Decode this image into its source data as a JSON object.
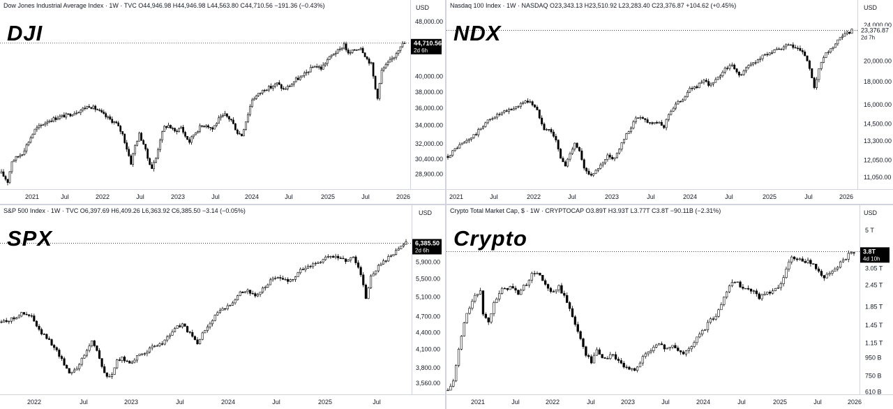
{
  "chart_data": [
    {
      "type": "candlestick",
      "name_label": "DJI",
      "header": "Dow Jones Industrial Average Index · 1W · TVC  O44,946.98 H44,946.98 L44,563.80 C44,710.56 −191.36 (−0.43%)",
      "currency": "USD",
      "scale": "log",
      "x_ticks": [
        "2021",
        "Jul",
        "2022",
        "Jul",
        "2023",
        "Jul",
        "2024",
        "Jul",
        "2025",
        "Jul",
        "2026"
      ],
      "y_ticks": [
        "48,000.00",
        "40,000.00",
        "38,000.00",
        "36,000.00",
        "34,000.00",
        "32,000.00",
        "30,400.00",
        "28,900.00"
      ],
      "ylim": [
        27500,
        49500
      ],
      "last_value": "44,710.56",
      "countdown": "2d 6h",
      "anchors": [
        [
          0,
          29000
        ],
        [
          3,
          28200
        ],
        [
          5,
          30200
        ],
        [
          10,
          31000
        ],
        [
          16,
          33500
        ],
        [
          22,
          34500
        ],
        [
          28,
          35000
        ],
        [
          32,
          35200
        ],
        [
          38,
          35800
        ],
        [
          42,
          36300
        ],
        [
          46,
          35800
        ],
        [
          50,
          35000
        ],
        [
          55,
          34200
        ],
        [
          58,
          33000
        ],
        [
          60,
          31500
        ],
        [
          62,
          30000
        ],
        [
          64,
          31800
        ],
        [
          66,
          33000
        ],
        [
          68,
          32000
        ],
        [
          70,
          30500
        ],
        [
          72,
          29500
        ],
        [
          74,
          30500
        ],
        [
          76,
          32500
        ],
        [
          78,
          33800
        ],
        [
          80,
          34000
        ],
        [
          83,
          33300
        ],
        [
          86,
          33800
        ],
        [
          88,
          32800
        ],
        [
          90,
          32200
        ],
        [
          92,
          33000
        ],
        [
          95,
          33800
        ],
        [
          98,
          34100
        ],
        [
          101,
          33600
        ],
        [
          104,
          34700
        ],
        [
          107,
          35200
        ],
        [
          110,
          34600
        ],
        [
          113,
          33200
        ],
        [
          115,
          32900
        ],
        [
          117,
          34500
        ],
        [
          120,
          37100
        ],
        [
          123,
          37700
        ],
        [
          126,
          38400
        ],
        [
          129,
          38600
        ],
        [
          132,
          39100
        ],
        [
          135,
          38300
        ],
        [
          138,
          38800
        ],
        [
          141,
          39600
        ],
        [
          144,
          40000
        ],
        [
          147,
          40800
        ],
        [
          150,
          41500
        ],
        [
          153,
          41100
        ],
        [
          156,
          42300
        ],
        [
          159,
          43200
        ],
        [
          162,
          43700
        ],
        [
          164,
          44600
        ],
        [
          166,
          43100
        ],
        [
          169,
          43700
        ],
        [
          172,
          44100
        ],
        [
          175,
          42400
        ],
        [
          177,
          41700
        ],
        [
          179,
          38400
        ],
        [
          180,
          37400
        ],
        [
          182,
          40800
        ],
        [
          185,
          41800
        ],
        [
          188,
          42800
        ],
        [
          191,
          44400
        ],
        [
          193,
          44710
        ]
      ]
    },
    {
      "type": "candlestick",
      "name_label": "NDX",
      "header": "Nasdaq 100 Index · 1W · NASDAQ  O23,343.13 H23,510.92 L23,283.40 C23,376.87 +104.62 (+0.45%)",
      "currency": "USD",
      "scale": "log",
      "x_ticks": [
        "2021",
        "Jul",
        "2022",
        "Jul",
        "2023",
        "Jul",
        "2024",
        "Jul",
        "2025",
        "Jul",
        "2026"
      ],
      "y_ticks": [
        "24,000.00",
        "20,000.00",
        "18,000.00",
        "16,000.00",
        "14,500.00",
        "13,300.00",
        "12,050.00",
        "11,050.00"
      ],
      "ylim": [
        10400,
        25600
      ],
      "last_value": "23,376.87",
      "countdown": "2d 7h",
      "anchors": [
        [
          0,
          12300
        ],
        [
          4,
          12900
        ],
        [
          8,
          13300
        ],
        [
          12,
          13800
        ],
        [
          16,
          14600
        ],
        [
          20,
          15100
        ],
        [
          24,
          15400
        ],
        [
          28,
          15700
        ],
        [
          32,
          16200
        ],
        [
          35,
          16300
        ],
        [
          38,
          15500
        ],
        [
          41,
          14200
        ],
        [
          44,
          14000
        ],
        [
          46,
          13300
        ],
        [
          48,
          12200
        ],
        [
          50,
          11700
        ],
        [
          52,
          12500
        ],
        [
          54,
          13200
        ],
        [
          56,
          12600
        ],
        [
          58,
          11500
        ],
        [
          60,
          11300
        ],
        [
          62,
          11200
        ],
        [
          64,
          11600
        ],
        [
          66,
          11800
        ],
        [
          68,
          12300
        ],
        [
          70,
          12100
        ],
        [
          72,
          12500
        ],
        [
          74,
          13100
        ],
        [
          76,
          13700
        ],
        [
          78,
          14300
        ],
        [
          80,
          14900
        ],
        [
          82,
          15100
        ],
        [
          84,
          14800
        ],
        [
          86,
          14600
        ],
        [
          88,
          14700
        ],
        [
          90,
          14500
        ],
        [
          92,
          14300
        ],
        [
          94,
          15300
        ],
        [
          97,
          16000
        ],
        [
          100,
          16500
        ],
        [
          103,
          17300
        ],
        [
          106,
          17600
        ],
        [
          109,
          18000
        ],
        [
          112,
          17700
        ],
        [
          115,
          18300
        ],
        [
          118,
          19300
        ],
        [
          121,
          19500
        ],
        [
          123,
          18900
        ],
        [
          125,
          18600
        ],
        [
          127,
          19300
        ],
        [
          130,
          19800
        ],
        [
          133,
          20300
        ],
        [
          136,
          20800
        ],
        [
          139,
          21000
        ],
        [
          142,
          21300
        ],
        [
          145,
          21700
        ],
        [
          148,
          21300
        ],
        [
          150,
          21100
        ],
        [
          153,
          20100
        ],
        [
          155,
          18200
        ],
        [
          156,
          17300
        ],
        [
          158,
          19200
        ],
        [
          161,
          20700
        ],
        [
          164,
          21500
        ],
        [
          167,
          22400
        ],
        [
          170,
          23000
        ],
        [
          172,
          23376
        ]
      ]
    },
    {
      "type": "candlestick",
      "name_label": "SPX",
      "header": "S&P 500 Index · 1W · TVC  O6,397.69 H6,409.26 L6,363.92 C6,385.50 −3.14 (−0.05%)",
      "currency": "USD",
      "scale": "log",
      "x_ticks": [
        "2022",
        "Jul",
        "2023",
        "Jul",
        "2024",
        "Jul",
        "2025",
        "Jul"
      ],
      "y_ticks": [
        "5,900.00",
        "5,500.00",
        "5,100.00",
        "4,700.00",
        "4,400.00",
        "4,100.00",
        "3,800.00",
        "3,560.00"
      ],
      "ylim": [
        3400,
        7100
      ],
      "last_value": "6,385.50",
      "countdown": "2d 6h",
      "anchors": [
        [
          0,
          4600
        ],
        [
          4,
          4650
        ],
        [
          8,
          4760
        ],
        [
          12,
          4700
        ],
        [
          15,
          4430
        ],
        [
          18,
          4300
        ],
        [
          21,
          4150
        ],
        [
          24,
          3930
        ],
        [
          27,
          3720
        ],
        [
          30,
          3800
        ],
        [
          33,
          4000
        ],
        [
          36,
          4250
        ],
        [
          38,
          4100
        ],
        [
          40,
          3800
        ],
        [
          42,
          3650
        ],
        [
          44,
          3700
        ],
        [
          46,
          3900
        ],
        [
          48,
          3950
        ],
        [
          51,
          3880
        ],
        [
          54,
          3970
        ],
        [
          57,
          4050
        ],
        [
          60,
          4130
        ],
        [
          63,
          4180
        ],
        [
          66,
          4300
        ],
        [
          69,
          4480
        ],
        [
          72,
          4550
        ],
        [
          74,
          4430
        ],
        [
          76,
          4320
        ],
        [
          78,
          4200
        ],
        [
          80,
          4370
        ],
        [
          83,
          4590
        ],
        [
          86,
          4780
        ],
        [
          89,
          4860
        ],
        [
          92,
          5010
        ],
        [
          95,
          5200
        ],
        [
          98,
          5250
        ],
        [
          101,
          5100
        ],
        [
          104,
          5270
        ],
        [
          107,
          5450
        ],
        [
          110,
          5560
        ],
        [
          113,
          5460
        ],
        [
          116,
          5500
        ],
        [
          119,
          5700
        ],
        [
          122,
          5800
        ],
        [
          125,
          5860
        ],
        [
          128,
          5960
        ],
        [
          131,
          6050
        ],
        [
          134,
          6000
        ],
        [
          137,
          5950
        ],
        [
          140,
          6040
        ],
        [
          142,
          5770
        ],
        [
          144,
          5400
        ],
        [
          145,
          5100
        ],
        [
          147,
          5550
        ],
        [
          150,
          5800
        ],
        [
          153,
          5950
        ],
        [
          156,
          6100
        ],
        [
          159,
          6300
        ],
        [
          161,
          6385
        ]
      ]
    },
    {
      "type": "candlestick",
      "name_label": "Crypto",
      "header": "Crypto Total Market Cap, $ · 1W · CRYPTOCAP  O3.89T H3.93T L3.77T C3.8T −90.11B (−2.31%)",
      "currency": "USD",
      "scale": "log",
      "x_ticks": [
        "2021",
        "Jul",
        "2022",
        "Jul",
        "2023",
        "Jul",
        "2024",
        "Jul",
        "2025",
        "Jul",
        "2026"
      ],
      "y_ticks": [
        "5 T",
        "3.05 T",
        "2.45 T",
        "1.85 T",
        "1.45 T",
        "1.15 T",
        "950 B",
        "750 B",
        "610 B"
      ],
      "ylim": [
        590,
        5900
      ],
      "last_value": "3.8T",
      "countdown": "4d 10h",
      "anchors": [
        [
          0,
          620
        ],
        [
          2,
          700
        ],
        [
          4,
          1050
        ],
        [
          6,
          1500
        ],
        [
          8,
          1850
        ],
        [
          10,
          2100
        ],
        [
          12,
          2300
        ],
        [
          13,
          1700
        ],
        [
          15,
          1500
        ],
        [
          17,
          2000
        ],
        [
          20,
          2300
        ],
        [
          23,
          2400
        ],
        [
          26,
          2200
        ],
        [
          29,
          2500
        ],
        [
          31,
          2800
        ],
        [
          33,
          2900
        ],
        [
          35,
          2600
        ],
        [
          37,
          2300
        ],
        [
          39,
          2200
        ],
        [
          41,
          2400
        ],
        [
          43,
          2100
        ],
        [
          45,
          1800
        ],
        [
          47,
          1500
        ],
        [
          49,
          1200
        ],
        [
          51,
          1000
        ],
        [
          53,
          900
        ],
        [
          55,
          1050
        ],
        [
          57,
          950
        ],
        [
          59,
          950
        ],
        [
          61,
          1000
        ],
        [
          63,
          900
        ],
        [
          65,
          850
        ],
        [
          67,
          800
        ],
        [
          69,
          820
        ],
        [
          71,
          900
        ],
        [
          73,
          1000
        ],
        [
          75,
          1050
        ],
        [
          77,
          1150
        ],
        [
          79,
          1100
        ],
        [
          81,
          1080
        ],
        [
          83,
          1100
        ],
        [
          85,
          1050
        ],
        [
          87,
          1000
        ],
        [
          89,
          1070
        ],
        [
          91,
          1150
        ],
        [
          93,
          1300
        ],
        [
          95,
          1400
        ],
        [
          97,
          1550
        ],
        [
          99,
          1650
        ],
        [
          101,
          1900
        ],
        [
          103,
          2300
        ],
        [
          105,
          2600
        ],
        [
          107,
          2500
        ],
        [
          109,
          2400
        ],
        [
          111,
          2300
        ],
        [
          113,
          2300
        ],
        [
          115,
          2100
        ],
        [
          117,
          2200
        ],
        [
          119,
          2200
        ],
        [
          121,
          2300
        ],
        [
          123,
          2450
        ],
        [
          125,
          3000
        ],
        [
          127,
          3500
        ],
        [
          129,
          3450
        ],
        [
          131,
          3300
        ],
        [
          133,
          3400
        ],
        [
          135,
          3200
        ],
        [
          137,
          2900
        ],
        [
          139,
          2750
        ],
        [
          141,
          2800
        ],
        [
          143,
          3000
        ],
        [
          145,
          3300
        ],
        [
          147,
          3500
        ],
        [
          149,
          3750
        ],
        [
          150,
          3800
        ]
      ]
    }
  ]
}
